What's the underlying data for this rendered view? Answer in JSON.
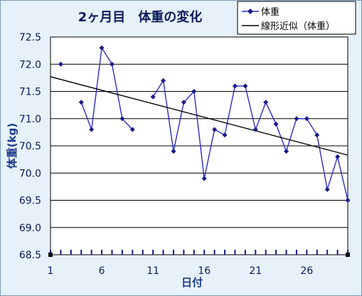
{
  "chart_data": {
    "type": "line",
    "title": "2ヶ月目　体重の変化",
    "xlabel": "日付",
    "ylabel": "体重(kg)",
    "xlim": [
      1,
      30
    ],
    "ylim": [
      68.5,
      72.5
    ],
    "xticks": [
      1,
      6,
      11,
      16,
      21,
      26
    ],
    "yticks": [
      68.5,
      69,
      69.5,
      70,
      70.5,
      71,
      71.5,
      72,
      72.5
    ],
    "grid": "horizontal",
    "legend_position": "top-right",
    "series": [
      {
        "name": "体重",
        "color": "#2c2cc8",
        "marker": "diamond",
        "points": [
          {
            "x": 2,
            "y": 72.0
          },
          {
            "x": 4,
            "y": 71.3
          },
          {
            "x": 5,
            "y": 70.8
          },
          {
            "x": 6,
            "y": 72.3
          },
          {
            "x": 7,
            "y": 72.0
          },
          {
            "x": 8,
            "y": 71.0
          },
          {
            "x": 9,
            "y": 70.8
          },
          {
            "x": 11,
            "y": 71.4
          },
          {
            "x": 12,
            "y": 71.7
          },
          {
            "x": 13,
            "y": 70.4
          },
          {
            "x": 14,
            "y": 71.3
          },
          {
            "x": 15,
            "y": 71.5
          },
          {
            "x": 16,
            "y": 69.9
          },
          {
            "x": 17,
            "y": 70.8
          },
          {
            "x": 18,
            "y": 70.7
          },
          {
            "x": 19,
            "y": 71.6
          },
          {
            "x": 20,
            "y": 71.6
          },
          {
            "x": 21,
            "y": 70.8
          },
          {
            "x": 22,
            "y": 71.3
          },
          {
            "x": 23,
            "y": 70.9
          },
          {
            "x": 24,
            "y": 70.4
          },
          {
            "x": 25,
            "y": 71.0
          },
          {
            "x": 26,
            "y": 71.0
          },
          {
            "x": 27,
            "y": 70.7
          },
          {
            "x": 28,
            "y": 69.7
          },
          {
            "x": 29,
            "y": 70.3
          },
          {
            "x": 30,
            "y": 69.5
          }
        ]
      },
      {
        "name": "線形近似（体重）",
        "color": "#000000",
        "type": "trendline",
        "points": [
          {
            "x": 1,
            "y": 71.77
          },
          {
            "x": 30,
            "y": 70.33
          }
        ]
      }
    ]
  }
}
